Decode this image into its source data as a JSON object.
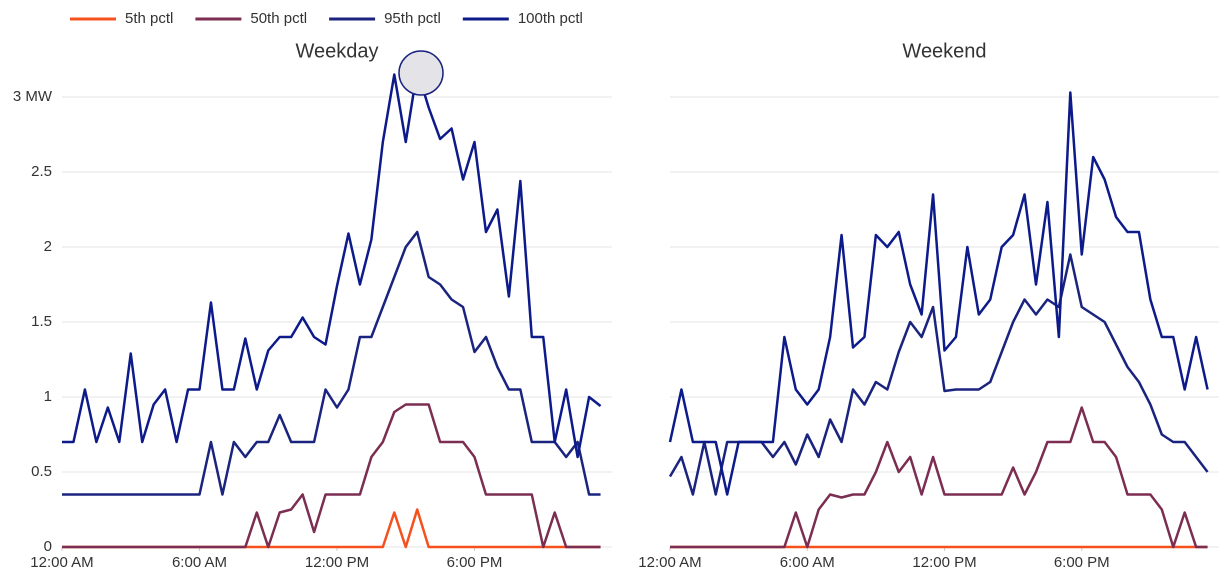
{
  "chart_data": [
    {
      "type": "line",
      "title": "Weekday",
      "x": [
        0,
        0.5,
        1,
        1.5,
        2,
        2.5,
        3,
        3.5,
        4,
        4.5,
        5,
        5.5,
        6,
        6.5,
        7,
        7.5,
        8,
        8.5,
        9,
        9.5,
        10,
        10.5,
        11,
        11.5,
        12,
        12.5,
        13,
        13.5,
        14,
        14.5,
        15,
        15.5,
        16,
        16.5,
        17,
        17.5,
        18,
        18.5,
        19,
        19.5,
        20,
        20.5,
        21,
        21.5,
        22,
        22.5,
        23,
        23.5
      ],
      "xlim": [
        0,
        24
      ],
      "xticks": [
        {
          "value": 0,
          "label": "12:00 AM"
        },
        {
          "value": 6,
          "label": "6:00 AM"
        },
        {
          "value": 12,
          "label": "12:00 PM"
        },
        {
          "value": 18,
          "label": "6:00 PM"
        }
      ],
      "ylim": [
        0,
        3
      ],
      "yticks": [
        0,
        0.5,
        1,
        1.5,
        2,
        2.5,
        {
          "value": 3,
          "label": "3 MW"
        }
      ],
      "grid": true,
      "series": [
        {
          "name": "5th pctl",
          "color": "#f4511e",
          "values": [
            0,
            0,
            0,
            0,
            0,
            0,
            0,
            0,
            0,
            0,
            0,
            0,
            0,
            0,
            0,
            0,
            0,
            0,
            0,
            0,
            0,
            0,
            0,
            0,
            0,
            0,
            0,
            0,
            0,
            0.23,
            0,
            0.25,
            0,
            0,
            0,
            0,
            0,
            0,
            0,
            0,
            0,
            0,
            0,
            0,
            0,
            0,
            0,
            0
          ]
        },
        {
          "name": "50th pctl",
          "color": "#7b2d52",
          "values": [
            0,
            0,
            0,
            0,
            0,
            0,
            0,
            0,
            0,
            0,
            0,
            0,
            0,
            0,
            0,
            0,
            0,
            0.23,
            0,
            0.23,
            0.25,
            0.35,
            0.1,
            0.35,
            0.35,
            0.35,
            0.35,
            0.6,
            0.7,
            0.9,
            0.95,
            0.95,
            0.95,
            0.7,
            0.7,
            0.7,
            0.6,
            0.35,
            0.35,
            0.35,
            0.35,
            0.35,
            0,
            0.23,
            0,
            0,
            0,
            0
          ]
        },
        {
          "name": "95th pctl",
          "color": "#1a237e",
          "values": [
            0.35,
            0.35,
            0.35,
            0.35,
            0.35,
            0.35,
            0.35,
            0.35,
            0.35,
            0.35,
            0.35,
            0.35,
            0.35,
            0.7,
            0.35,
            0.7,
            0.6,
            0.7,
            0.7,
            0.88,
            0.7,
            0.7,
            0.7,
            1.05,
            0.93,
            1.05,
            1.4,
            1.4,
            1.6,
            1.8,
            2.0,
            2.1,
            1.8,
            1.75,
            1.65,
            1.6,
            1.3,
            1.4,
            1.2,
            1.05,
            1.05,
            0.7,
            0.7,
            0.7,
            0.6,
            0.7,
            0.35,
            0.35
          ]
        },
        {
          "name": "100th pctl",
          "color": "#0d1a8a",
          "values": [
            0.7,
            0.7,
            1.05,
            0.7,
            0.93,
            0.7,
            1.29,
            0.7,
            0.95,
            1.05,
            0.7,
            1.05,
            1.05,
            1.63,
            1.05,
            1.05,
            1.39,
            1.05,
            1.31,
            1.4,
            1.4,
            1.53,
            1.4,
            1.35,
            1.74,
            2.09,
            1.75,
            2.05,
            2.7,
            3.15,
            2.7,
            3.18,
            2.93,
            2.72,
            2.79,
            2.45,
            2.7,
            2.1,
            2.25,
            1.67,
            2.44,
            1.4,
            1.4,
            0.7,
            1.05,
            0.6,
            1.0,
            0.94
          ]
        }
      ]
    },
    {
      "type": "line",
      "title": "Weekend",
      "x": [
        0,
        0.5,
        1,
        1.5,
        2,
        2.5,
        3,
        3.5,
        4,
        4.5,
        5,
        5.5,
        6,
        6.5,
        7,
        7.5,
        8,
        8.5,
        9,
        9.5,
        10,
        10.5,
        11,
        11.5,
        12,
        12.5,
        13,
        13.5,
        14,
        14.5,
        15,
        15.5,
        16,
        16.5,
        17,
        17.5,
        18,
        18.5,
        19,
        19.5,
        20,
        20.5,
        21,
        21.5,
        22,
        22.5,
        23,
        23.5
      ],
      "xlim": [
        0,
        24
      ],
      "xticks": [
        {
          "value": 0,
          "label": "12:00 AM"
        },
        {
          "value": 6,
          "label": "6:00 AM"
        },
        {
          "value": 12,
          "label": "12:00 PM"
        },
        {
          "value": 18,
          "label": "6:00 PM"
        }
      ],
      "ylim": [
        0,
        3
      ],
      "yticks": [
        0,
        0.5,
        1,
        1.5,
        2,
        2.5,
        3
      ],
      "grid": true,
      "series": [
        {
          "color": "#f4511e",
          "values": [
            0,
            0,
            0,
            0,
            0,
            0,
            0,
            0,
            0,
            0,
            0,
            0,
            0,
            0,
            0,
            0,
            0,
            0,
            0,
            0,
            0,
            0,
            0,
            0,
            0,
            0,
            0,
            0,
            0,
            0,
            0,
            0,
            0,
            0,
            0,
            0,
            0,
            0,
            0,
            0,
            0,
            0,
            0,
            0,
            0,
            0,
            0,
            0
          ]
        },
        {
          "color": "#7b2d52",
          "values": [
            0,
            0,
            0,
            0,
            0,
            0,
            0,
            0,
            0,
            0,
            0,
            0.23,
            0,
            0.25,
            0.35,
            0.33,
            0.35,
            0.35,
            0.5,
            0.7,
            0.5,
            0.6,
            0.35,
            0.6,
            0.35,
            0.35,
            0.35,
            0.35,
            0.35,
            0.35,
            0.53,
            0.35,
            0.5,
            0.7,
            0.7,
            0.7,
            0.93,
            0.7,
            0.7,
            0.6,
            0.35,
            0.35,
            0.35,
            0.25,
            0,
            0.23,
            0,
            0
          ]
        },
        {
          "color": "#1a237e",
          "values": [
            0.47,
            0.6,
            0.35,
            0.7,
            0.35,
            0.7,
            0.7,
            0.7,
            0.7,
            0.6,
            0.7,
            0.55,
            0.75,
            0.6,
            0.85,
            0.7,
            1.05,
            0.95,
            1.1,
            1.05,
            1.3,
            1.5,
            1.4,
            1.6,
            1.04,
            1.05,
            1.05,
            1.05,
            1.1,
            1.3,
            1.5,
            1.65,
            1.55,
            1.65,
            1.6,
            1.95,
            1.6,
            1.55,
            1.5,
            1.35,
            1.2,
            1.1,
            0.95,
            0.75,
            0.7,
            0.7,
            0.6,
            0.5
          ]
        },
        {
          "color": "#0d1a8a",
          "values": [
            0.7,
            1.05,
            0.7,
            0.7,
            0.7,
            0.35,
            0.7,
            0.7,
            0.7,
            0.7,
            1.4,
            1.05,
            0.95,
            1.05,
            1.4,
            2.08,
            1.33,
            1.4,
            2.08,
            2.0,
            2.1,
            1.75,
            1.55,
            2.35,
            1.31,
            1.4,
            2.0,
            1.55,
            1.65,
            2.0,
            2.08,
            2.35,
            1.75,
            2.3,
            1.4,
            3.03,
            1.95,
            2.6,
            2.45,
            2.2,
            2.1,
            2.1,
            1.65,
            1.4,
            1.4,
            1.05,
            1.4,
            1.05
          ]
        }
      ]
    }
  ]
}
